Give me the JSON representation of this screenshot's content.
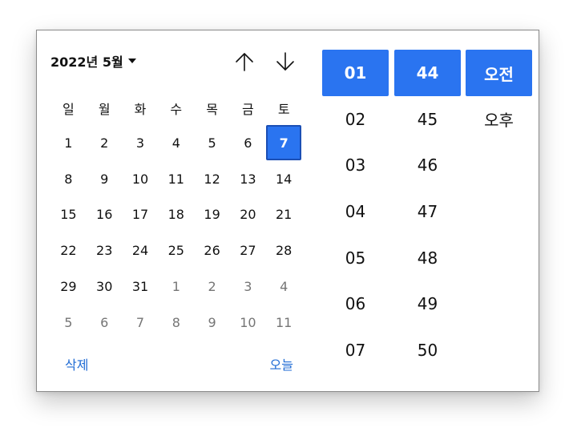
{
  "calendar": {
    "month_label": "2022년 5월",
    "weekdays": [
      "일",
      "월",
      "화",
      "수",
      "목",
      "금",
      "토"
    ],
    "weeks": [
      [
        {
          "d": "1",
          "o": false
        },
        {
          "d": "2",
          "o": false
        },
        {
          "d": "3",
          "o": false
        },
        {
          "d": "4",
          "o": false
        },
        {
          "d": "5",
          "o": false
        },
        {
          "d": "6",
          "o": false
        },
        {
          "d": "7",
          "o": false,
          "sel": true
        }
      ],
      [
        {
          "d": "8",
          "o": false
        },
        {
          "d": "9",
          "o": false
        },
        {
          "d": "10",
          "o": false
        },
        {
          "d": "11",
          "o": false
        },
        {
          "d": "12",
          "o": false
        },
        {
          "d": "13",
          "o": false
        },
        {
          "d": "14",
          "o": false
        }
      ],
      [
        {
          "d": "15",
          "o": false
        },
        {
          "d": "16",
          "o": false
        },
        {
          "d": "17",
          "o": false
        },
        {
          "d": "18",
          "o": false
        },
        {
          "d": "19",
          "o": false
        },
        {
          "d": "20",
          "o": false
        },
        {
          "d": "21",
          "o": false
        }
      ],
      [
        {
          "d": "22",
          "o": false
        },
        {
          "d": "23",
          "o": false
        },
        {
          "d": "24",
          "o": false
        },
        {
          "d": "25",
          "o": false
        },
        {
          "d": "26",
          "o": false
        },
        {
          "d": "27",
          "o": false
        },
        {
          "d": "28",
          "o": false
        }
      ],
      [
        {
          "d": "29",
          "o": false
        },
        {
          "d": "30",
          "o": false
        },
        {
          "d": "31",
          "o": false
        },
        {
          "d": "1",
          "o": true
        },
        {
          "d": "2",
          "o": true
        },
        {
          "d": "3",
          "o": true
        },
        {
          "d": "4",
          "o": true
        }
      ],
      [
        {
          "d": "5",
          "o": true
        },
        {
          "d": "6",
          "o": true
        },
        {
          "d": "7",
          "o": true
        },
        {
          "d": "8",
          "o": true
        },
        {
          "d": "9",
          "o": true
        },
        {
          "d": "10",
          "o": true
        },
        {
          "d": "11",
          "o": true
        }
      ]
    ],
    "clear_label": "삭제",
    "today_label": "오늘"
  },
  "time": {
    "hours": [
      "01",
      "02",
      "03",
      "04",
      "05",
      "06",
      "07"
    ],
    "minutes": [
      "44",
      "45",
      "46",
      "47",
      "48",
      "49",
      "50"
    ],
    "ampm": [
      "오전",
      "오후"
    ],
    "selected_hour": "01",
    "selected_minute": "44",
    "selected_ampm": "오전"
  },
  "colors": {
    "accent": "#2a74f0",
    "link": "#1f6bd4",
    "muted_day": "#757575"
  },
  "icons": {
    "nav_up": "arrow-up-icon",
    "nav_down": "arrow-down-icon",
    "dropdown": "caret-down-icon"
  }
}
